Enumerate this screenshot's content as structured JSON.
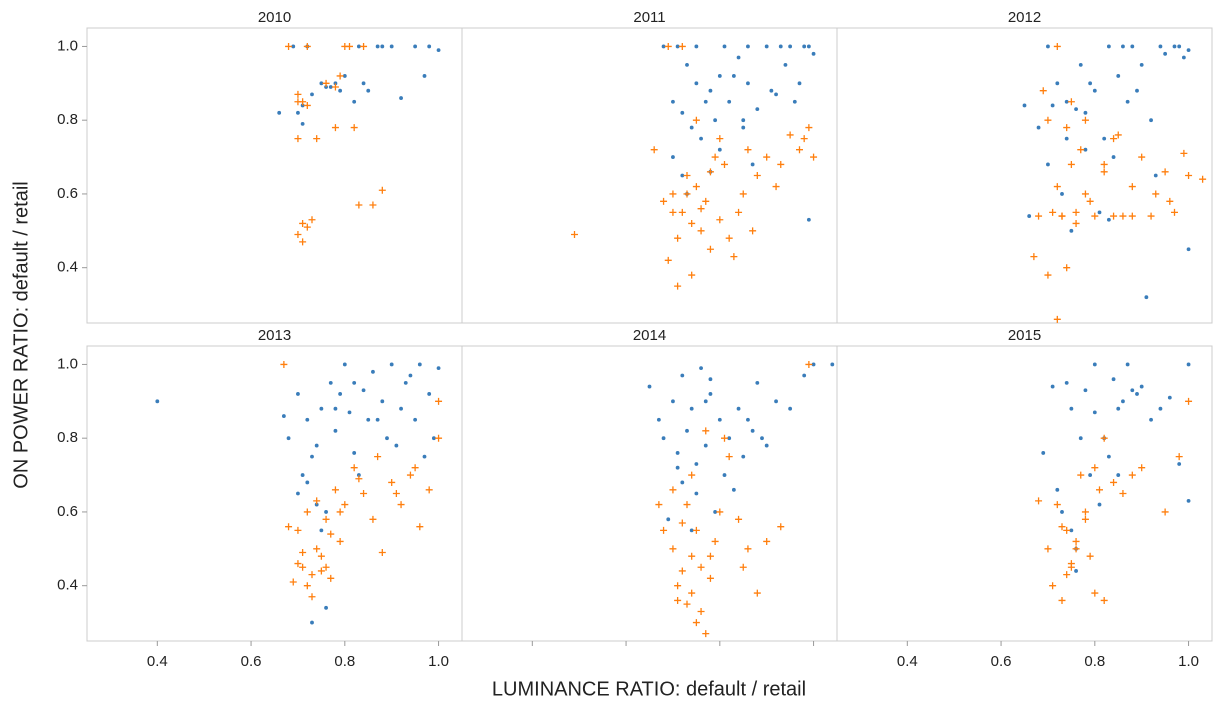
{
  "xlabel": "LUMINANCE RATIO: default / retail",
  "ylabel": "ON POWER RATIO: default / retail",
  "chart_data": [
    {
      "type": "scatter",
      "title": "2010",
      "xlim": [
        0.25,
        1.05
      ],
      "ylim": [
        0.25,
        1.05
      ],
      "yticks": [
        0.4,
        0.6,
        0.8,
        {
          "value": 1,
          "label": "1.0"
        }
      ],
      "series": [
        {
          "color": "#3a7dba",
          "marker": "circle",
          "x": [
            0.66,
            0.69,
            0.7,
            0.71,
            0.72,
            0.73,
            0.75,
            0.77,
            0.78,
            0.8,
            0.82,
            0.83,
            0.85,
            0.87,
            0.88,
            0.9,
            0.92,
            0.95,
            0.97,
            0.98,
            1.0,
            0.71,
            0.76,
            0.79,
            0.84
          ],
          "values": [
            0.82,
            1.0,
            0.82,
            0.79,
            1.0,
            0.87,
            0.9,
            0.89,
            0.9,
            0.92,
            0.85,
            1.0,
            0.88,
            1.0,
            1.0,
            1.0,
            0.86,
            1.0,
            0.92,
            1.0,
            0.99,
            0.84,
            0.89,
            0.88,
            0.9
          ]
        },
        {
          "color": "#ff7f0e",
          "marker": "plus",
          "x": [
            0.68,
            0.7,
            0.7,
            0.71,
            0.71,
            0.72,
            0.73,
            0.74,
            0.76,
            0.78,
            0.79,
            0.8,
            0.82,
            0.83,
            0.86,
            0.88,
            0.7,
            0.7,
            0.71,
            0.72,
            0.84,
            0.72,
            0.81,
            0.78
          ],
          "values": [
            1.0,
            0.87,
            0.75,
            0.85,
            0.47,
            0.51,
            0.53,
            0.75,
            0.9,
            0.78,
            0.92,
            1.0,
            0.78,
            0.57,
            0.57,
            0.61,
            0.49,
            0.85,
            0.52,
            1.0,
            1.0,
            0.84,
            1.0,
            0.89
          ]
        }
      ]
    },
    {
      "type": "scatter",
      "title": "2011",
      "xlim": [
        0.25,
        1.05
      ],
      "ylim": [
        0.25,
        1.05
      ],
      "series": [
        {
          "color": "#3a7dba",
          "marker": "circle",
          "x": [
            0.68,
            0.7,
            0.72,
            0.73,
            0.75,
            0.76,
            0.78,
            0.79,
            0.8,
            0.82,
            0.84,
            0.85,
            0.86,
            0.88,
            0.9,
            0.92,
            0.94,
            0.95,
            0.97,
            0.98,
            1.0,
            0.7,
            0.72,
            0.74,
            0.77,
            0.8,
            0.83,
            0.87,
            0.91,
            0.96,
            0.99,
            0.71,
            0.75,
            0.81,
            0.86,
            0.93,
            0.73,
            0.78,
            0.85,
            0.99
          ],
          "values": [
            1.0,
            0.85,
            0.82,
            0.95,
            0.9,
            0.75,
            0.88,
            0.8,
            0.92,
            0.85,
            0.97,
            0.78,
            0.9,
            0.83,
            1.0,
            0.87,
            0.95,
            1.0,
            0.9,
            1.0,
            0.98,
            0.7,
            0.65,
            0.78,
            0.85,
            0.72,
            0.92,
            0.68,
            0.88,
            0.85,
            0.53,
            1.0,
            1.0,
            1.0,
            1.0,
            1.0,
            0.6,
            0.66,
            0.8,
            1.0
          ]
        },
        {
          "color": "#ff7f0e",
          "marker": "plus",
          "x": [
            0.49,
            0.66,
            0.68,
            0.69,
            0.7,
            0.71,
            0.72,
            0.73,
            0.74,
            0.75,
            0.76,
            0.77,
            0.78,
            0.79,
            0.8,
            0.81,
            0.82,
            0.84,
            0.86,
            0.88,
            0.9,
            0.92,
            0.95,
            0.97,
            0.99,
            1.0,
            0.7,
            0.71,
            0.73,
            0.74,
            0.76,
            0.78,
            0.83,
            0.87,
            0.93,
            0.98,
            0.69,
            0.72,
            0.75,
            0.8,
            0.85
          ],
          "values": [
            0.49,
            0.72,
            0.58,
            0.42,
            0.6,
            0.35,
            0.55,
            0.65,
            0.52,
            0.62,
            0.5,
            0.58,
            0.45,
            0.7,
            0.53,
            0.68,
            0.48,
            0.55,
            0.72,
            0.65,
            0.7,
            0.62,
            0.76,
            0.72,
            0.78,
            0.7,
            0.55,
            0.48,
            0.6,
            0.38,
            0.56,
            0.66,
            0.43,
            0.5,
            0.68,
            0.75,
            1.0,
            1.0,
            0.8,
            0.75,
            0.6
          ]
        }
      ]
    },
    {
      "type": "scatter",
      "title": "2012",
      "xlim": [
        0.25,
        1.05
      ],
      "ylim": [
        0.25,
        1.05
      ],
      "series": [
        {
          "color": "#3a7dba",
          "marker": "circle",
          "x": [
            0.65,
            0.66,
            0.68,
            0.7,
            0.72,
            0.74,
            0.75,
            0.77,
            0.78,
            0.8,
            0.82,
            0.83,
            0.85,
            0.87,
            0.88,
            0.9,
            0.92,
            0.94,
            0.95,
            0.97,
            0.99,
            1.0,
            0.7,
            0.73,
            0.76,
            0.79,
            0.84,
            0.89,
            0.93,
            0.98,
            0.91,
            1.0,
            0.74,
            0.81,
            0.86,
            0.71,
            0.78,
            0.83
          ],
          "values": [
            0.84,
            0.54,
            0.78,
            1.0,
            0.9,
            0.85,
            0.5,
            0.95,
            0.82,
            0.88,
            0.75,
            1.0,
            0.92,
            0.85,
            1.0,
            0.95,
            0.8,
            1.0,
            0.98,
            1.0,
            0.97,
            0.45,
            0.68,
            0.6,
            0.83,
            0.9,
            0.7,
            0.88,
            0.65,
            1.0,
            0.32,
            0.99,
            0.75,
            0.55,
            1.0,
            0.84,
            0.72,
            0.53
          ]
        },
        {
          "color": "#ff7f0e",
          "marker": "plus",
          "x": [
            0.67,
            0.68,
            0.7,
            0.71,
            0.72,
            0.73,
            0.74,
            0.75,
            0.76,
            0.77,
            0.78,
            0.8,
            0.82,
            0.84,
            0.86,
            0.88,
            0.9,
            0.92,
            0.95,
            0.97,
            1.0,
            1.03,
            0.7,
            0.72,
            0.74,
            0.76,
            0.79,
            0.82,
            0.85,
            0.88,
            0.93,
            0.96,
            0.99,
            0.72,
            0.75,
            0.69,
            0.73,
            0.78,
            0.84
          ],
          "values": [
            0.43,
            0.54,
            0.8,
            0.55,
            0.62,
            0.54,
            0.4,
            0.68,
            0.55,
            0.72,
            0.6,
            0.54,
            0.66,
            0.75,
            0.54,
            0.62,
            0.7,
            0.54,
            0.66,
            0.55,
            0.65,
            0.64,
            0.38,
            0.26,
            0.78,
            0.52,
            0.58,
            0.68,
            0.76,
            0.54,
            0.6,
            0.58,
            0.71,
            1.0,
            0.85,
            0.88,
            0.54,
            0.8,
            0.54
          ]
        }
      ]
    },
    {
      "type": "scatter",
      "title": "2013",
      "xlim": [
        0.25,
        1.05
      ],
      "ylim": [
        0.25,
        1.05
      ],
      "xticks": [
        0.4,
        0.6,
        0.8,
        {
          "value": 1,
          "label": "1.0"
        }
      ],
      "yticks": [
        0.4,
        0.6,
        0.8,
        {
          "value": 1,
          "label": "1.0"
        }
      ],
      "series": [
        {
          "color": "#3a7dba",
          "marker": "circle",
          "x": [
            0.4,
            0.67,
            0.68,
            0.7,
            0.71,
            0.72,
            0.73,
            0.74,
            0.75,
            0.76,
            0.77,
            0.78,
            0.8,
            0.81,
            0.82,
            0.84,
            0.85,
            0.86,
            0.88,
            0.89,
            0.9,
            0.92,
            0.93,
            0.95,
            0.96,
            0.98,
            1.0,
            0.7,
            0.73,
            0.76,
            0.79,
            0.83,
            0.87,
            0.91,
            0.94,
            0.99,
            0.72,
            0.75,
            0.74,
            0.78,
            0.82,
            0.97
          ],
          "values": [
            0.9,
            0.86,
            0.8,
            0.92,
            0.7,
            0.85,
            0.3,
            0.78,
            0.88,
            0.6,
            0.95,
            0.82,
            1.0,
            0.87,
            0.76,
            0.93,
            0.85,
            0.98,
            0.9,
            0.8,
            1.0,
            0.88,
            0.95,
            0.85,
            1.0,
            0.92,
            0.99,
            0.65,
            0.75,
            0.34,
            0.92,
            0.7,
            0.85,
            0.78,
            0.97,
            0.8,
            0.68,
            0.55,
            0.62,
            0.88,
            0.95,
            0.75
          ]
        },
        {
          "color": "#ff7f0e",
          "marker": "plus",
          "x": [
            0.67,
            0.68,
            0.69,
            0.7,
            0.71,
            0.72,
            0.73,
            0.74,
            0.75,
            0.76,
            0.77,
            0.78,
            0.79,
            0.8,
            0.82,
            0.84,
            0.86,
            0.88,
            0.9,
            0.92,
            0.94,
            0.96,
            0.98,
            1.0,
            0.7,
            0.72,
            0.74,
            0.75,
            0.77,
            0.73,
            0.71,
            0.76,
            0.79,
            0.83,
            0.87,
            0.95,
            1.0,
            0.91
          ],
          "values": [
            1.0,
            0.56,
            0.41,
            0.55,
            0.45,
            0.6,
            0.37,
            0.5,
            0.44,
            0.58,
            0.42,
            0.66,
            0.52,
            0.62,
            0.72,
            0.65,
            0.58,
            0.49,
            0.68,
            0.62,
            0.7,
            0.56,
            0.66,
            0.9,
            0.46,
            0.4,
            0.63,
            0.48,
            0.54,
            0.43,
            0.49,
            0.45,
            0.6,
            0.69,
            0.75,
            0.72,
            0.8,
            0.65
          ]
        }
      ]
    },
    {
      "type": "scatter",
      "title": "2014",
      "xlim": [
        0.25,
        1.05
      ],
      "ylim": [
        0.25,
        1.05
      ],
      "xticks": [
        0.4,
        0.6,
        0.8,
        1
      ],
      "xtick_labels": false,
      "series": [
        {
          "color": "#3a7dba",
          "marker": "circle",
          "x": [
            0.65,
            0.67,
            0.68,
            0.7,
            0.71,
            0.72,
            0.73,
            0.74,
            0.75,
            0.76,
            0.77,
            0.78,
            0.79,
            0.8,
            0.82,
            0.84,
            0.85,
            0.87,
            0.88,
            0.9,
            0.92,
            0.95,
            0.98,
            1.0,
            1.04,
            0.69,
            0.72,
            0.75,
            0.78,
            0.81,
            0.86,
            0.89,
            0.74,
            0.77,
            0.71,
            0.83
          ],
          "values": [
            0.94,
            0.85,
            0.8,
            0.9,
            0.72,
            0.97,
            0.82,
            0.88,
            0.65,
            0.99,
            0.78,
            0.92,
            0.6,
            0.85,
            0.8,
            0.88,
            0.75,
            0.82,
            0.95,
            0.78,
            0.9,
            0.88,
            0.97,
            1.0,
            1.0,
            0.58,
            0.68,
            0.73,
            0.96,
            0.7,
            0.85,
            0.8,
            0.55,
            0.9,
            0.76,
            0.66
          ]
        },
        {
          "color": "#ff7f0e",
          "marker": "plus",
          "x": [
            0.67,
            0.68,
            0.7,
            0.71,
            0.72,
            0.73,
            0.74,
            0.75,
            0.76,
            0.77,
            0.78,
            0.79,
            0.8,
            0.82,
            0.84,
            0.86,
            0.88,
            0.9,
            0.93,
            0.99,
            0.7,
            0.72,
            0.74,
            0.75,
            0.76,
            0.78,
            0.73,
            0.77,
            0.81,
            0.85,
            0.71,
            0.74
          ],
          "values": [
            0.62,
            0.55,
            0.5,
            0.4,
            0.57,
            0.35,
            0.48,
            0.3,
            0.45,
            0.27,
            0.42,
            0.52,
            0.6,
            0.75,
            0.58,
            0.5,
            0.38,
            0.52,
            0.56,
            1.0,
            0.66,
            0.44,
            0.38,
            0.55,
            0.33,
            0.48,
            0.62,
            0.82,
            0.8,
            0.45,
            0.36,
            0.7
          ]
        }
      ]
    },
    {
      "type": "scatter",
      "title": "2015",
      "xlim": [
        0.25,
        1.05
      ],
      "ylim": [
        0.25,
        1.05
      ],
      "xticks": [
        0.4,
        0.6,
        0.8,
        {
          "value": 1,
          "label": "1.0"
        }
      ],
      "series": [
        {
          "color": "#3a7dba",
          "marker": "circle",
          "x": [
            0.69,
            0.71,
            0.73,
            0.74,
            0.75,
            0.76,
            0.77,
            0.78,
            0.79,
            0.8,
            0.82,
            0.83,
            0.84,
            0.85,
            0.86,
            0.88,
            0.89,
            0.9,
            0.92,
            0.94,
            0.96,
            0.98,
            1.0,
            0.72,
            0.76,
            0.8,
            0.85,
            0.87,
            1.0,
            0.75,
            0.81
          ],
          "values": [
            0.76,
            0.94,
            0.6,
            0.95,
            0.88,
            0.5,
            0.8,
            0.93,
            0.7,
            1.0,
            0.8,
            0.75,
            0.96,
            0.88,
            0.9,
            0.93,
            0.92,
            0.94,
            0.85,
            0.88,
            0.91,
            0.73,
            1.0,
            0.66,
            0.44,
            0.87,
            0.7,
            1.0,
            0.63,
            0.55,
            0.62
          ]
        },
        {
          "color": "#ff7f0e",
          "marker": "plus",
          "x": [
            0.68,
            0.7,
            0.71,
            0.72,
            0.73,
            0.74,
            0.75,
            0.76,
            0.77,
            0.78,
            0.79,
            0.8,
            0.81,
            0.82,
            0.84,
            0.86,
            0.88,
            0.9,
            0.95,
            0.98,
            1.0,
            0.74,
            0.76,
            0.73,
            0.75,
            0.78,
            0.8,
            0.82
          ],
          "values": [
            0.63,
            0.5,
            0.4,
            0.62,
            0.36,
            0.55,
            0.45,
            0.52,
            0.7,
            0.6,
            0.48,
            0.38,
            0.66,
            0.36,
            0.68,
            0.65,
            0.7,
            0.72,
            0.6,
            0.75,
            0.9,
            0.43,
            0.5,
            0.56,
            0.46,
            0.58,
            0.72,
            0.8
          ]
        }
      ]
    }
  ]
}
